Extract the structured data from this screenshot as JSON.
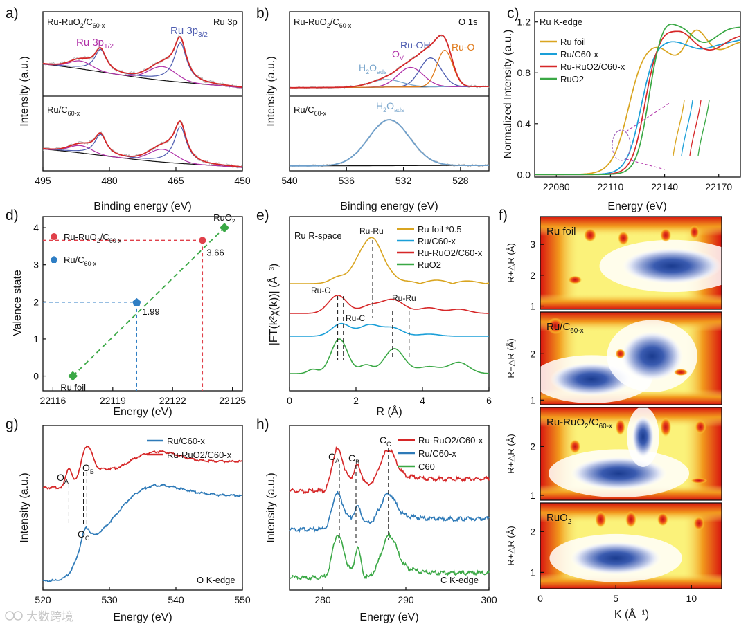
{
  "panels": {
    "a": {
      "label": "a)",
      "xlabel": "Binding energy (eV)",
      "ylabel": "Intensity (a.u.)",
      "xticks": [
        "495",
        "480",
        "465",
        "450"
      ],
      "top_title": "Ru-RuO2/C60-x",
      "top_sample": "Ru-RuO",
      "top_sub": "2",
      "top_rest": "/C",
      "top_sub2": "60-x",
      "edge": "Ru 3p",
      "p12": "Ru 3p",
      "p12sub": "1/2",
      "p32": "Ru 3p",
      "p32sub": "3/2",
      "bottom_title": "Ru/C",
      "bottom_sub": "60-x"
    },
    "b": {
      "label": "b)",
      "xlabel": "Binding energy (eV)",
      "ylabel": "Intensity (a.u.)",
      "xticks": [
        "540",
        "536",
        "532",
        "528"
      ],
      "top_title": "Ru-RuO",
      "top_sub": "2",
      "top_rest": "/C",
      "top_sub2": "60-x",
      "edge": "O 1s",
      "h2o": "H",
      "h2o_sub": "2",
      "h2o_rest": "O",
      "h2o_sub2": "ads",
      "ov": "O",
      "ov_sub": "V",
      "ruoh": "Ru-OH",
      "ruo": "Ru-O",
      "bottom_title": "Ru/C",
      "bottom_sub": "60-x"
    },
    "c": {
      "label": "c)",
      "xlabel": "Energy (eV)",
      "ylabel": "Normalized Intensity (a.u.)",
      "title": "Ru K-edge",
      "xticks": [
        "22080",
        "22110",
        "22140",
        "22170"
      ],
      "yticks": [
        "0.0",
        "0.4",
        "0.8",
        "1.2"
      ]
    },
    "d": {
      "label": "d)",
      "xlabel": "Energy (eV)",
      "ylabel": "Valence state",
      "xticks": [
        "22116",
        "22119",
        "22122",
        "22125"
      ],
      "yticks": [
        "0",
        "1",
        "2",
        "3",
        "4"
      ],
      "legend1": "Ru-RuO",
      "legend1_sub": "2",
      "legend1_rest": "/C",
      "legend1_sub2": "60-x",
      "legend2": "Ru/C",
      "legend2_sub": "60-x",
      "val1": "3.66",
      "val2": "1.99",
      "ruo2": "RuO",
      "ruo2_sub": "2",
      "rufoil": "Ru foil"
    },
    "e": {
      "label": "e)",
      "xlabel": "R (Å)",
      "ylabel": "|FT(k²χ(k))| (Å⁻³)",
      "title": "Ru R-space",
      "xticks": [
        "0",
        "2",
        "4",
        "6"
      ],
      "ruru": "Ru-Ru",
      "ruo": "Ru-O",
      "ruc": "Ru-C",
      "ruru2": "Ru-Ru"
    },
    "f": {
      "label": "f)",
      "xlabel": "K (Å⁻¹)",
      "ylabel": "R+△R (Å)",
      "xticks": [
        "0",
        "5",
        "10"
      ],
      "maps": [
        {
          "name": "Ru foil",
          "yticks": [
            "1",
            "2",
            "3"
          ]
        },
        {
          "name": "Ru/C",
          "sub": "60-x",
          "yticks": [
            "1",
            "2"
          ]
        },
        {
          "name": "Ru-RuO",
          "sub": "2",
          "rest": "/C",
          "sub2": "60-x",
          "yticks": [
            "1",
            "2"
          ]
        },
        {
          "name": "RuO",
          "sub": "2",
          "yticks": [
            "1",
            "2"
          ]
        }
      ]
    },
    "g": {
      "label": "g)",
      "xlabel": "Energy (eV)",
      "ylabel": "Intensity (a.u.)",
      "edge": "O K-edge",
      "xticks": [
        "520",
        "530",
        "540",
        "550"
      ],
      "oa": "O",
      "oa_sub": "A",
      "ob": "O",
      "ob_sub": "B",
      "oc": "O",
      "oc_sub": "C"
    },
    "h": {
      "label": "h)",
      "xlabel": "Energy (eV)",
      "ylabel": "Intensity (a.u.)",
      "edge": "C K-edge",
      "xticks": [
        "280",
        "290",
        "300"
      ],
      "ca": "C",
      "ca_sub": "A",
      "cb": "C",
      "cb_sub": "B",
      "cc": "C",
      "cc_sub": "C"
    }
  },
  "legend_c": [
    {
      "name": "Ru foil",
      "color": "#d9a520"
    },
    {
      "name": "Ru/C60-x",
      "color": "#1a9fd8"
    },
    {
      "name": "Ru-RuO2/C60-x",
      "color": "#d62728"
    },
    {
      "name": "RuO2",
      "color": "#3aa845"
    }
  ],
  "legend_e": [
    {
      "name": "Ru foil *0.5",
      "color": "#d9a520"
    },
    {
      "name": "Ru/C60-x",
      "color": "#1a9fd8"
    },
    {
      "name": "Ru-RuO2/C60-x",
      "color": "#d62728"
    },
    {
      "name": "RuO2",
      "color": "#3aa845"
    }
  ],
  "legend_g": [
    {
      "name": "Ru/C60-x",
      "color": "#2e7ab8"
    },
    {
      "name": "Ru-RuO2/C60-x",
      "color": "#d62728"
    }
  ],
  "legend_h": [
    {
      "name": "Ru-RuO2/C60-x",
      "color": "#d62728"
    },
    {
      "name": "Ru/C60-x",
      "color": "#2e7ab8"
    },
    {
      "name": "C60",
      "color": "#3aa845"
    }
  ],
  "watermark": "大数跨境",
  "chart_data": [
    {
      "panel": "a",
      "type": "line",
      "title": "Ru 3p XPS",
      "xlabel": "Binding energy (eV)",
      "ylabel": "Intensity (a.u.)",
      "xlim": [
        495,
        450
      ],
      "peaks": [
        {
          "name": "Ru 3p1/2",
          "x": 482
        },
        {
          "name": "Ru 3p3/2",
          "x": 464
        }
      ]
    },
    {
      "panel": "b",
      "type": "line",
      "title": "O 1s XPS",
      "xlabel": "Binding energy (eV)",
      "xlim": [
        540,
        526
      ],
      "peaks": [
        {
          "name": "H2O ads",
          "x": 533.2
        },
        {
          "name": "OV",
          "x": 531.5
        },
        {
          "name": "Ru-OH",
          "x": 530.1
        },
        {
          "name": "Ru-O",
          "x": 529.1
        }
      ]
    },
    {
      "panel": "c",
      "type": "line",
      "title": "Ru K-edge",
      "xlabel": "Energy (eV)",
      "ylabel": "Normalized Intensity (a.u.)",
      "xlim": [
        22068,
        22182
      ],
      "ylim": [
        -0.02,
        1.28
      ],
      "series": [
        "Ru foil",
        "Ru/C60-x",
        "Ru-RuO2/C60-x",
        "RuO2"
      ]
    },
    {
      "panel": "d",
      "type": "scatter",
      "xlabel": "Energy (eV)",
      "ylabel": "Valence state",
      "xlim": [
        22115.5,
        22125.5
      ],
      "ylim": [
        -0.4,
        4.3
      ],
      "series": [
        {
          "name": "Ru foil",
          "x": 22117,
          "y": 0
        },
        {
          "name": "Ru/C60-x",
          "x": 22120.2,
          "y": 1.99
        },
        {
          "name": "Ru-RuO2/C60-x",
          "x": 22123.5,
          "y": 3.66
        },
        {
          "name": "RuO2",
          "x": 22124.6,
          "y": 4
        }
      ]
    },
    {
      "panel": "e",
      "type": "line",
      "title": "Ru R-space",
      "xlabel": "R (Å)",
      "xlim": [
        0,
        6
      ],
      "series": [
        "Ru foil *0.5",
        "Ru/C60-x",
        "Ru-RuO2/C60-x",
        "RuO2"
      ]
    },
    {
      "panel": "f",
      "type": "heatmap",
      "xlabel": "K (Å⁻¹)",
      "ylabel": "R+△R (Å)",
      "xlim": [
        0,
        12
      ],
      "maps": [
        "Ru foil",
        "Ru/C60-x",
        "Ru-RuO2/C60-x",
        "RuO2"
      ]
    },
    {
      "panel": "g",
      "type": "line",
      "title": "O K-edge",
      "xlabel": "Energy (eV)",
      "xlim": [
        520,
        550
      ],
      "series": [
        "Ru/C60-x",
        "Ru-RuO2/C60-x"
      ]
    },
    {
      "panel": "h",
      "type": "line",
      "title": "C K-edge",
      "xlabel": "Energy (eV)",
      "xlim": [
        276,
        300
      ],
      "series": [
        "Ru-RuO2/C60-x",
        "Ru/C60-x",
        "C60"
      ]
    }
  ]
}
